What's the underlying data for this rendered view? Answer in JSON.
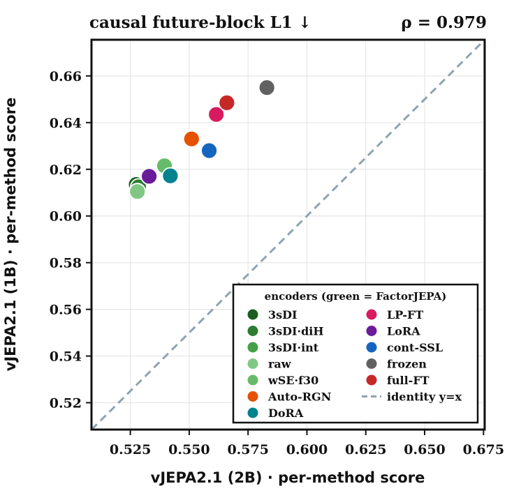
{
  "chart_data": {
    "type": "scatter",
    "title_left": "causal future-block L1  ↓",
    "title_right": "ρ = 0.979",
    "xlabel": "vJEPA2.1 (2B) · per-method score",
    "ylabel": "vJEPA2.1 (1B) · per-method score",
    "xlim": [
      0.5085,
      0.6755
    ],
    "ylim": [
      0.5085,
      0.6755
    ],
    "xticks": [
      0.525,
      0.55,
      0.575,
      0.6,
      0.625,
      0.65,
      0.675
    ],
    "xtick_labels": [
      "0.525",
      "0.550",
      "0.575",
      "0.600",
      "0.625",
      "0.650",
      "0.675"
    ],
    "yticks": [
      0.52,
      0.54,
      0.56,
      0.58,
      0.6,
      0.62,
      0.64,
      0.66
    ],
    "ytick_labels": [
      "0.52",
      "0.54",
      "0.56",
      "0.58",
      "0.60",
      "0.62",
      "0.64",
      "0.66"
    ],
    "grid": true,
    "legend_position": "lower-right",
    "legend_title": "encoders (green = FactorJEPA)",
    "identity_label": "identity  y=x",
    "identity_color": "#8fa3b0",
    "series": [
      {
        "name": "3sDI",
        "color": "#1b5e20",
        "x": 0.5275,
        "y": 0.6135
      },
      {
        "name": "3sDI·diH",
        "color": "#2e7d32",
        "x": 0.5285,
        "y": 0.6125
      },
      {
        "name": "3sDI·int",
        "color": "#43a047",
        "x": 0.539,
        "y": 0.6215
      },
      {
        "name": "raw",
        "color": "#81c784",
        "x": 0.528,
        "y": 0.6105
      },
      {
        "name": "wSE·f30",
        "color": "#66bb6a",
        "x": 0.5395,
        "y": 0.6215
      },
      {
        "name": "Auto-RGN",
        "color": "#e65100",
        "x": 0.551,
        "y": 0.633
      },
      {
        "name": "DoRA",
        "color": "#00838f",
        "x": 0.542,
        "y": 0.6172
      },
      {
        "name": "LP-FT",
        "color": "#d81b60",
        "x": 0.5615,
        "y": 0.6435
      },
      {
        "name": "LoRA",
        "color": "#6a1b9a",
        "x": 0.533,
        "y": 0.617
      },
      {
        "name": "cont-SSL",
        "color": "#1565c0",
        "x": 0.5585,
        "y": 0.628
      },
      {
        "name": "frozen",
        "color": "#616161",
        "x": 0.583,
        "y": 0.655
      },
      {
        "name": "full-FT",
        "color": "#c62828",
        "x": 0.566,
        "y": 0.6485
      }
    ]
  }
}
